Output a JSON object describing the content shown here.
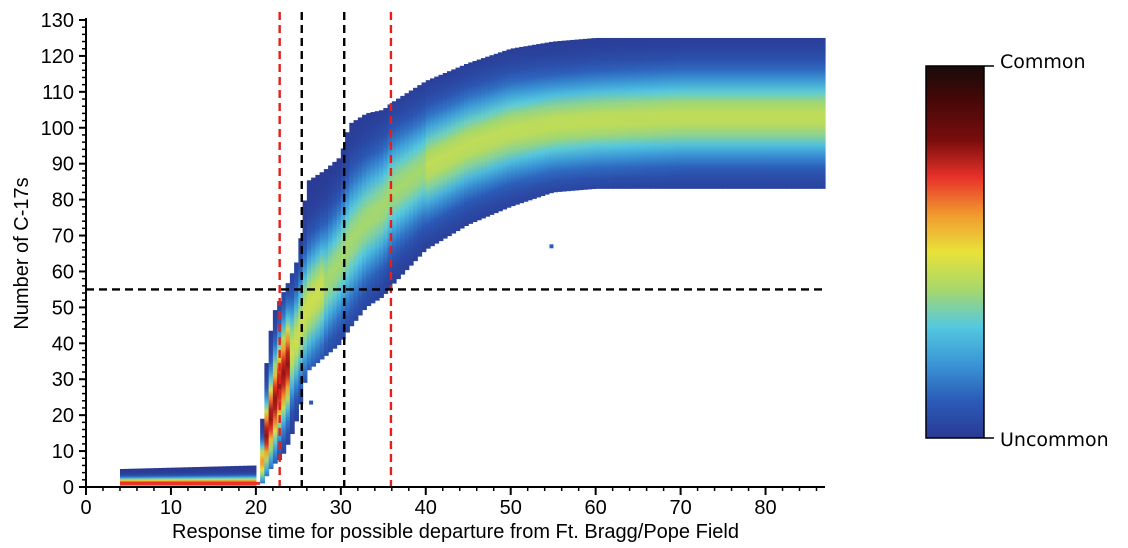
{
  "chart_data": {
    "type": "heatmap",
    "xlabel": "Response time for possible departure from Ft. Bragg/Pope Field",
    "ylabel": "Number of C-17s",
    "xlim": [
      0,
      87
    ],
    "ylim": [
      0,
      130
    ],
    "xticks": [
      0,
      10,
      20,
      30,
      40,
      50,
      60,
      70,
      80
    ],
    "yticks": [
      0,
      10,
      20,
      30,
      40,
      50,
      60,
      70,
      80,
      90,
      100,
      110,
      120,
      130
    ],
    "grid": false,
    "density_bands": [
      {
        "x": [
          4,
          20
        ],
        "y_min": [
          0,
          0
        ],
        "y_max": [
          5,
          6
        ],
        "y_mode": [
          1,
          1
        ]
      },
      {
        "x": [
          20.5,
          21,
          22,
          23,
          24,
          25,
          26,
          28,
          30,
          31,
          33,
          35,
          36,
          40,
          45,
          50,
          55,
          60,
          70,
          87
        ],
        "y_min": [
          0,
          2,
          6,
          8,
          13,
          20,
          32,
          36,
          40,
          44,
          50,
          53,
          56,
          66,
          73,
          78,
          82,
          83,
          83,
          83
        ],
        "y_max": [
          8,
          30,
          48,
          53,
          58,
          64,
          85,
          88,
          92,
          101,
          104,
          105,
          107,
          113,
          118,
          122,
          124,
          125,
          125,
          125
        ],
        "y_mode": [
          2,
          12,
          22,
          30,
          36,
          42,
          50,
          56,
          63,
          68,
          74,
          78,
          82,
          89,
          95,
          99,
          101,
          102,
          103,
          103
        ]
      }
    ],
    "colorbar": {
      "top_label": "Common",
      "bottom_label": "Uncommon",
      "colors": [
        "#2a3a94",
        "#2b5bb8",
        "#3a96d6",
        "#55c9e0",
        "#a7d86a",
        "#e9e23a",
        "#f19a2f",
        "#e8322a",
        "#7a0d0d",
        "#4a0808",
        "#180a0a"
      ]
    },
    "reference_lines": {
      "red_vertical_x": [
        22.8,
        35.9
      ],
      "black_vertical_x": [
        25.4,
        30.4
      ],
      "black_horizontal_y": 55
    },
    "annotations": [
      {
        "x": 54.8,
        "y": 67
      },
      {
        "x": 26.5,
        "y": 23.5
      }
    ]
  }
}
